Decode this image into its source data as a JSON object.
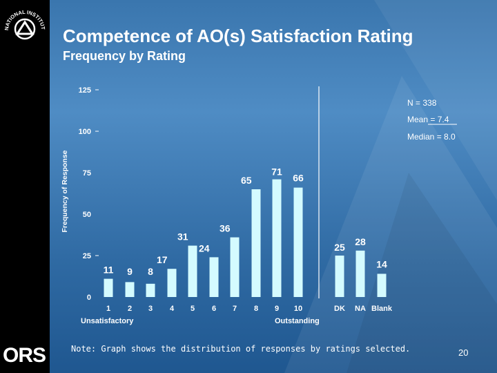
{
  "slide": {
    "title": "Competence of AO(s) Satisfaction Rating",
    "subtitle": "Frequency by Rating",
    "note": "Note:  Graph shows the distribution of responses by ratings selected.",
    "page_number": "20",
    "logo_text": "ORS",
    "nih_seal_text": "NATIONAL INSTITUTES OF HEALTH"
  },
  "stats": {
    "n": "N = 338",
    "mean": "Mean = 7.4",
    "median": "Median = 8.0"
  },
  "chart_data": {
    "type": "bar",
    "ylabel": "Frequency of Response",
    "ylim": [
      0,
      125
    ],
    "yticks": [
      0,
      25,
      50,
      75,
      100,
      125
    ],
    "categories": [
      "1",
      "2",
      "3",
      "4",
      "5",
      "6",
      "7",
      "8",
      "9",
      "10",
      "DK",
      "NA",
      "Blank"
    ],
    "values": [
      11,
      9,
      8,
      17,
      31,
      24,
      36,
      65,
      71,
      66,
      25,
      28,
      14
    ],
    "x_anchor_labels": {
      "low": "Unsatisfactory",
      "high": "Outstanding"
    },
    "bar_color": "#d4fbff",
    "grid": false
  }
}
